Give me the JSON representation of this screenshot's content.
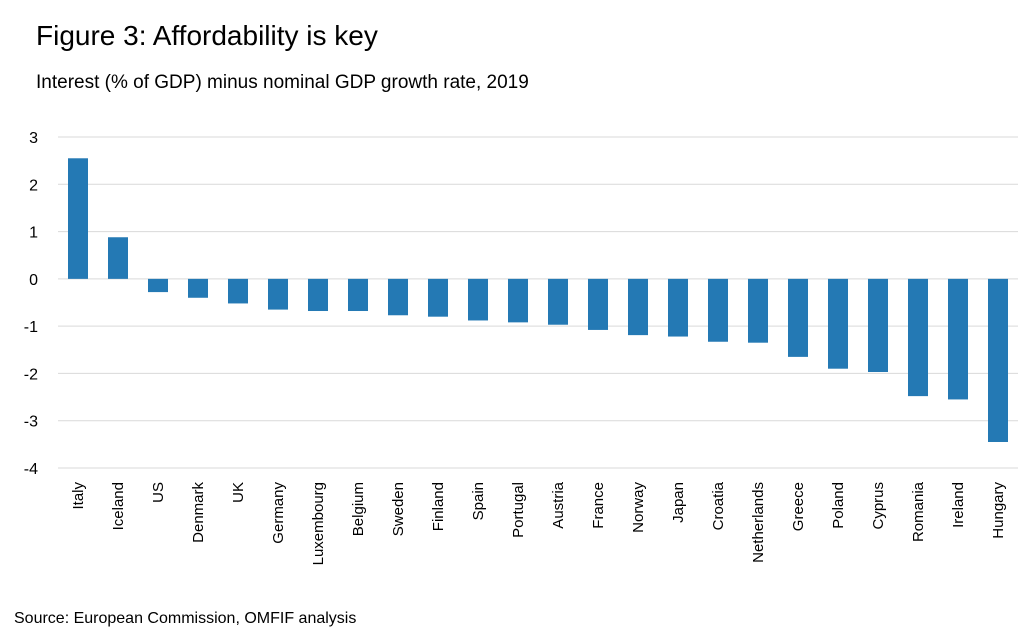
{
  "title": "Figure 3: Affordability is key",
  "subtitle": "Interest (% of GDP) minus nominal GDP growth rate, 2019",
  "source": "Source: European Commission, OMFIF analysis",
  "colors": {
    "bar": "#2479b4",
    "grid": "#d9d9d9",
    "zero_line": "#d9d9d9"
  },
  "chart_data": {
    "type": "bar",
    "categories": [
      "Italy",
      "Iceland",
      "US",
      "Denmark",
      "UK",
      "Germany",
      "Luxembourg",
      "Belgium",
      "Sweden",
      "Finland",
      "Spain",
      "Portugal",
      "Austria",
      "France",
      "Norway",
      "Japan",
      "Croatia",
      "Netherlands",
      "Greece",
      "Poland",
      "Cyprus",
      "Romania",
      "Ireland",
      "Hungary"
    ],
    "values": [
      2.55,
      0.88,
      -0.28,
      -0.4,
      -0.52,
      -0.65,
      -0.68,
      -0.68,
      -0.77,
      -0.8,
      -0.88,
      -0.92,
      -0.97,
      -1.08,
      -1.19,
      -1.22,
      -1.33,
      -1.35,
      -1.65,
      -1.9,
      -1.97,
      -2.48,
      -2.55,
      -3.45
    ],
    "title": "Figure 3: Affordability is key",
    "subtitle": "Interest (% of GDP) minus nominal GDP growth rate, 2019",
    "xlabel": "",
    "ylabel": "",
    "ylim": [
      -4,
      3
    ],
    "yticks": [
      3,
      2,
      1,
      0,
      -1,
      -2,
      -3,
      -4
    ],
    "grid": true,
    "legend": "none"
  }
}
